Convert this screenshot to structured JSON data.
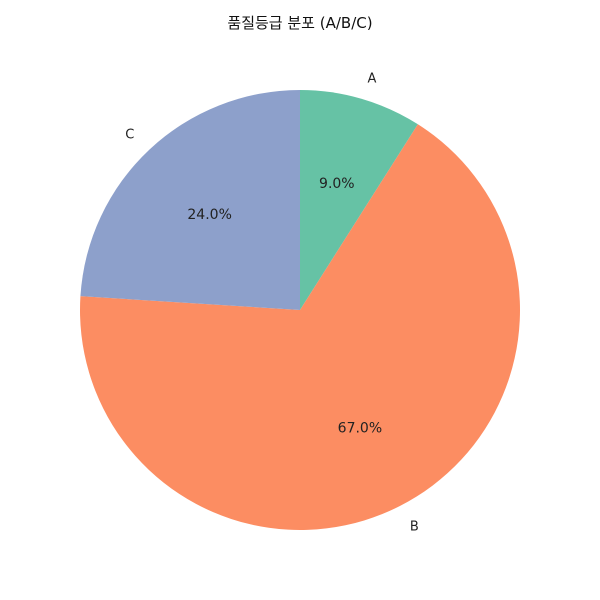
{
  "chart_data": {
    "type": "pie",
    "title": "품질등급 분포 (A/B/C)",
    "categories": [
      "A",
      "B",
      "C"
    ],
    "values": [
      9.0,
      67.0,
      24.0
    ],
    "value_labels": [
      "9.0%",
      "67.0%",
      "24.0%"
    ],
    "colors": [
      "#66c2a5",
      "#fc8d62",
      "#8da0cb"
    ],
    "start_angle_deg": 90,
    "direction": "clockwise",
    "legend": "none"
  }
}
